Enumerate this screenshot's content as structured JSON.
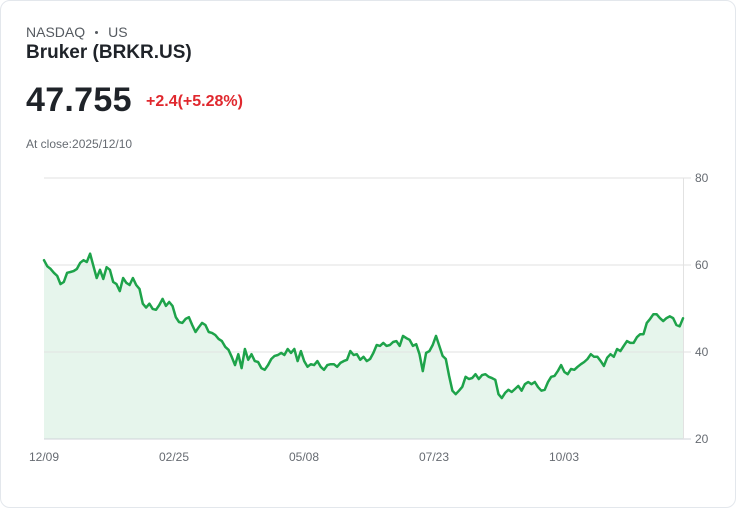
{
  "header": {
    "exchange": "NASDAQ",
    "region": "US",
    "title": "Bruker (BRKR.US)",
    "price": "47.755",
    "change": "+2.4(+5.28%)",
    "close_time": "At close:2025/12/10"
  },
  "colors": {
    "line": "#1ea34a",
    "fill": "#e6f5ec",
    "change": "#e0282e",
    "grid": "#e2e2e2"
  },
  "chart_data": {
    "type": "area",
    "title": "Bruker (BRKR.US)",
    "xlabel": "",
    "ylabel": "",
    "ylim": [
      20,
      80
    ],
    "yticks": [
      80,
      60,
      40,
      20
    ],
    "xticks": [
      "12/09",
      "02/25",
      "05/08",
      "07/23",
      "10/03"
    ],
    "grid": true,
    "legend": "none",
    "x_start": "12/09",
    "x_end": "2025/12/10",
    "series": [
      {
        "name": "BRKR.US",
        "values": [
          61.1,
          59.7,
          59.1,
          58.2,
          57.5,
          55.6,
          56.1,
          58.2,
          58.4,
          58.6,
          59.1,
          60.5,
          61.1,
          60.7,
          62.6,
          59.8,
          57.0,
          58.9,
          56.8,
          59.5,
          58.9,
          56.1,
          55.6,
          54.0,
          57.0,
          55.9,
          55.4,
          57.0,
          55.4,
          54.5,
          51.1,
          50.2,
          51.1,
          49.9,
          49.7,
          50.8,
          52.2,
          50.6,
          51.5,
          50.6,
          48.0,
          46.9,
          46.7,
          47.6,
          48.0,
          46.2,
          44.6,
          45.7,
          46.7,
          46.2,
          44.6,
          44.4,
          43.9,
          43.0,
          42.5,
          41.2,
          40.5,
          38.9,
          37.0,
          39.5,
          36.3,
          40.7,
          38.2,
          39.5,
          37.9,
          37.7,
          36.3,
          35.9,
          37.0,
          38.4,
          39.1,
          39.3,
          39.8,
          39.3,
          40.7,
          39.8,
          40.7,
          37.9,
          40.2,
          37.9,
          36.6,
          37.2,
          37.0,
          37.9,
          36.6,
          35.9,
          37.0,
          37.2,
          37.2,
          36.6,
          37.5,
          37.9,
          38.2,
          40.2,
          39.3,
          39.5,
          38.2,
          38.9,
          37.9,
          38.4,
          39.8,
          41.6,
          41.4,
          42.1,
          41.4,
          41.6,
          42.3,
          42.5,
          41.4,
          43.7,
          43.2,
          42.8,
          41.4,
          41.8,
          39.5,
          35.6,
          39.8,
          40.2,
          41.6,
          43.7,
          41.4,
          39.1,
          38.4,
          34.5,
          31.1,
          30.3,
          31.1,
          32.0,
          34.3,
          33.8,
          34.0,
          34.9,
          33.8,
          34.7,
          34.9,
          34.3,
          34.0,
          33.6,
          30.3,
          29.4,
          30.6,
          31.3,
          30.8,
          31.5,
          32.2,
          31.1,
          32.6,
          33.1,
          32.6,
          33.1,
          31.9,
          31.1,
          31.3,
          33.1,
          34.3,
          34.5,
          35.6,
          37.0,
          35.4,
          34.9,
          36.1,
          35.9,
          36.6,
          37.2,
          37.7,
          38.4,
          39.5,
          38.9,
          38.9,
          37.9,
          36.8,
          38.7,
          39.5,
          38.9,
          40.7,
          40.2,
          41.4,
          42.5,
          42.1,
          42.1,
          43.4,
          44.1,
          44.1,
          46.7,
          47.6,
          48.7,
          48.7,
          47.8,
          47.1,
          47.8,
          48.2,
          47.8,
          46.2,
          45.9,
          47.755
        ]
      }
    ]
  }
}
